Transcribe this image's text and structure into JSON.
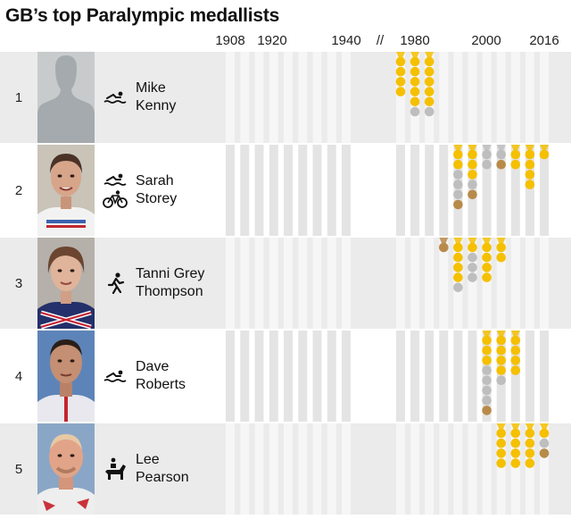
{
  "title": "GB’s top Paralympic medallists",
  "axis": {
    "ticks": [
      "1908",
      "1920",
      "1940",
      "1980",
      "2000",
      "2016"
    ],
    "break_symbol": "//"
  },
  "colors": {
    "gold": "#f5c000",
    "silver": "#bebebe",
    "bronze": "#b88a4a",
    "band": "#e4e4e4",
    "row_shade": "#ebebeb"
  },
  "athletes": [
    {
      "rank": "1",
      "first": "Mike",
      "last": "Kenny",
      "sports": [
        "swimming-icon"
      ]
    },
    {
      "rank": "2",
      "first": "Sarah",
      "last": "Storey",
      "sports": [
        "swimming-icon",
        "cycling-icon"
      ]
    },
    {
      "rank": "3",
      "first": "Tanni Grey",
      "last": "Thompson",
      "sports": [
        "athletics-icon"
      ]
    },
    {
      "rank": "4",
      "first": "Dave",
      "last": "Roberts",
      "sports": [
        "swimming-icon"
      ]
    },
    {
      "rank": "5",
      "first": "Lee",
      "last": "Pearson",
      "sports": [
        "equestrian-icon"
      ]
    }
  ],
  "chart_data": {
    "type": "scatter",
    "title": "GB’s top Paralympic medallists",
    "x_ticks": [
      1908,
      1920,
      1940,
      1980,
      2000,
      2016
    ],
    "games_years": [
      1908,
      1912,
      1916,
      1920,
      1924,
      1928,
      1932,
      1936,
      1940,
      1976,
      1980,
      1984,
      1988,
      1992,
      1996,
      2000,
      2004,
      2008,
      2012,
      2016
    ],
    "series": [
      {
        "athlete": "Mike Kenny",
        "medals": [
          {
            "year": 1976,
            "gold": 4,
            "silver": 0,
            "bronze": 0
          },
          {
            "year": 1980,
            "gold": 5,
            "silver": 1,
            "bronze": 0
          },
          {
            "year": 1984,
            "gold": 5,
            "silver": 1,
            "bronze": 0
          }
        ]
      },
      {
        "athlete": "Sarah Storey",
        "medals": [
          {
            "year": 1992,
            "gold": 2,
            "silver": 3,
            "bronze": 1
          },
          {
            "year": 1996,
            "gold": 3,
            "silver": 1,
            "bronze": 1
          },
          {
            "year": 2000,
            "gold": 0,
            "silver": 2,
            "bronze": 0
          },
          {
            "year": 2004,
            "gold": 0,
            "silver": 1,
            "bronze": 1
          },
          {
            "year": 2008,
            "gold": 2,
            "silver": 0,
            "bronze": 0
          },
          {
            "year": 2012,
            "gold": 4,
            "silver": 0,
            "bronze": 0
          },
          {
            "year": 2016,
            "gold": 1,
            "silver": 0,
            "bronze": 0
          }
        ]
      },
      {
        "athlete": "Tanni Grey Thompson",
        "medals": [
          {
            "year": 1988,
            "gold": 0,
            "silver": 0,
            "bronze": 1
          },
          {
            "year": 1992,
            "gold": 4,
            "silver": 1,
            "bronze": 0
          },
          {
            "year": 1996,
            "gold": 1,
            "silver": 3,
            "bronze": 0
          },
          {
            "year": 2000,
            "gold": 4,
            "silver": 0,
            "bronze": 0
          },
          {
            "year": 2004,
            "gold": 2,
            "silver": 0,
            "bronze": 0
          }
        ]
      },
      {
        "athlete": "Dave Roberts",
        "medals": [
          {
            "year": 2000,
            "gold": 3,
            "silver": 4,
            "bronze": 1
          },
          {
            "year": 2004,
            "gold": 4,
            "silver": 1,
            "bronze": 0
          },
          {
            "year": 2008,
            "gold": 4,
            "silver": 0,
            "bronze": 0
          },
          {
            "year": 2012,
            "gold": 0,
            "silver": 0,
            "bronze": 0
          },
          {
            "year": 2016,
            "gold": 0,
            "silver": 0,
            "bronze": 0
          }
        ]
      },
      {
        "athlete": "Lee Pearson",
        "medals": [
          {
            "year": 2004,
            "gold": 4,
            "silver": 0,
            "bronze": 0
          },
          {
            "year": 2008,
            "gold": 4,
            "silver": 0,
            "bronze": 0
          },
          {
            "year": 2012,
            "gold": 4,
            "silver": 0,
            "bronze": 0
          },
          {
            "year": 2016,
            "gold": 1,
            "silver": 1,
            "bronze": 1
          }
        ]
      }
    ]
  }
}
